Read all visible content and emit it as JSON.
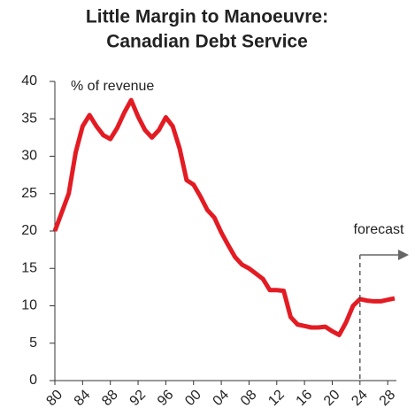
{
  "chart_data": {
    "type": "line",
    "title": [
      "Little Margin to Manoeuvre:",
      "Canadian Debt Service"
    ],
    "y_label": "% of revenue",
    "annotation": "forecast",
    "forecast_x": 2024,
    "x": [
      1980,
      1981,
      1982,
      1983,
      1984,
      1985,
      1986,
      1987,
      1988,
      1989,
      1990,
      1991,
      1992,
      1993,
      1994,
      1995,
      1996,
      1997,
      1998,
      1999,
      2000,
      2001,
      2002,
      2003,
      2004,
      2005,
      2006,
      2007,
      2008,
      2009,
      2010,
      2011,
      2012,
      2013,
      2014,
      2015,
      2016,
      2017,
      2018,
      2019,
      2020,
      2021,
      2022,
      2023,
      2024,
      2025,
      2026,
      2027,
      2028,
      2029
    ],
    "series": [
      {
        "color": "#e31b23",
        "values": [
          20,
          22.5,
          25,
          30.5,
          34,
          35.5,
          34,
          32.8,
          32.3,
          33.8,
          35.8,
          37.5,
          35.3,
          33.5,
          32.5,
          33.5,
          35.2,
          34,
          31,
          26.8,
          26.2,
          24.6,
          22.8,
          21.8,
          19.8,
          18.1,
          16.5,
          15.5,
          15,
          14.3,
          13.6,
          12.1,
          12.1,
          12,
          8.5,
          7.5,
          7.3,
          7.1,
          7.1,
          7.2,
          6.6,
          6.1,
          7.8,
          10,
          10.9,
          10.7,
          10.6,
          10.6,
          10.8,
          11
        ]
      }
    ],
    "xlim": [
      1980,
      2029
    ],
    "xticks": [
      {
        "value": 1980,
        "label": "80"
      },
      {
        "value": 1984,
        "label": "84"
      },
      {
        "value": 1988,
        "label": "88"
      },
      {
        "value": 1992,
        "label": "92"
      },
      {
        "value": 1996,
        "label": "96"
      },
      {
        "value": 2000,
        "label": "00"
      },
      {
        "value": 2004,
        "label": "04"
      },
      {
        "value": 2008,
        "label": "08"
      },
      {
        "value": 2012,
        "label": "12"
      },
      {
        "value": 2016,
        "label": "16"
      },
      {
        "value": 2020,
        "label": "20"
      },
      {
        "value": 2024,
        "label": "24"
      },
      {
        "value": 2028,
        "label": "28"
      }
    ],
    "ylim": [
      0,
      40
    ],
    "yticks": [
      0,
      5,
      10,
      15,
      20,
      25,
      30,
      35,
      40
    ],
    "grid": false
  }
}
